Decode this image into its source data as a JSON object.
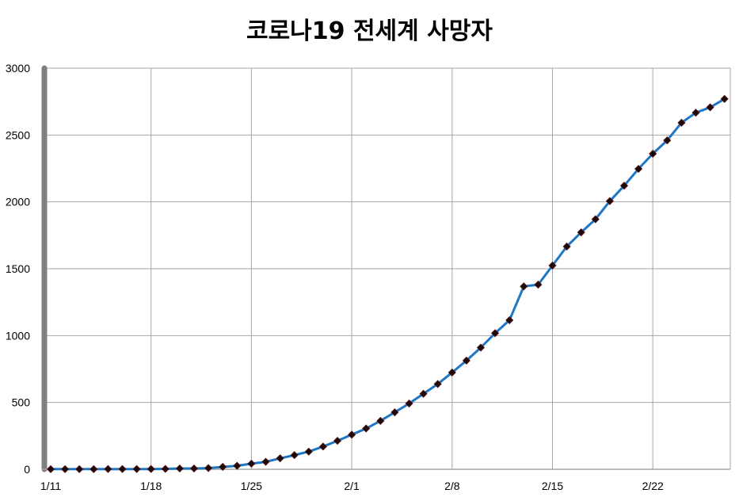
{
  "chart_data": {
    "type": "line",
    "title": "코로나19 전세계 사망자",
    "xlabel": "",
    "ylabel": "",
    "ylim": [
      0,
      3000
    ],
    "y_ticks": [
      "0",
      "500",
      "1000",
      "1500",
      "2000",
      "2500",
      "3000"
    ],
    "x_ticks": [
      "1/11",
      "1/18",
      "1/25",
      "2/1",
      "2/8",
      "2/15",
      "2/22"
    ],
    "grid": true,
    "legend": "none",
    "colors": {
      "line": "#1f77c4",
      "marker": "#1a0a0a",
      "grid": "#a6a6a6",
      "axis": "#808080"
    },
    "series": [
      {
        "x": [
          "1/11",
          "1/12",
          "1/13",
          "1/14",
          "1/15",
          "1/16",
          "1/17",
          "1/18",
          "1/19",
          "1/20",
          "1/21",
          "1/22",
          "1/23",
          "1/24",
          "1/25",
          "1/26",
          "1/27",
          "1/28",
          "1/29",
          "1/30",
          "1/31",
          "2/1",
          "2/2",
          "2/3",
          "2/4",
          "2/5",
          "2/6",
          "2/7",
          "2/8",
          "2/9",
          "2/10",
          "2/11",
          "2/12",
          "2/13",
          "2/14",
          "2/15",
          "2/16",
          "2/17",
          "2/18",
          "2/19",
          "2/20",
          "2/21",
          "2/22",
          "2/23",
          "2/24",
          "2/25",
          "2/26",
          "2/27"
        ],
        "values": [
          1,
          1,
          1,
          1,
          2,
          2,
          2,
          2,
          3,
          6,
          6,
          9,
          18,
          26,
          42,
          56,
          82,
          106,
          132,
          170,
          213,
          259,
          305,
          362,
          426,
          492,
          565,
          638,
          724,
          813,
          910,
          1018,
          1115,
          1368,
          1381,
          1524,
          1666,
          1772,
          1870,
          2006,
          2121,
          2247,
          2360,
          2460,
          2592,
          2667,
          2707,
          2770
        ]
      }
    ]
  }
}
